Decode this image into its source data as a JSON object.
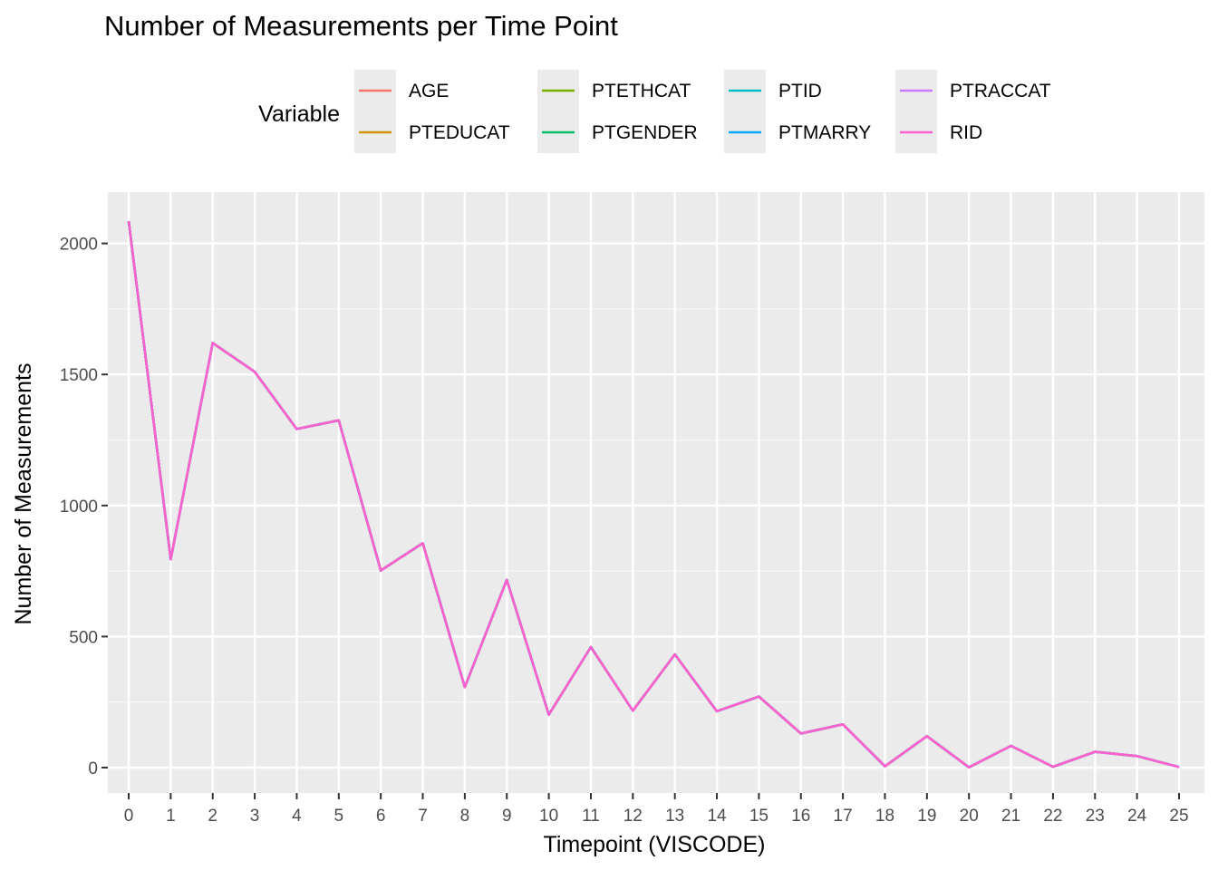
{
  "chart_data": {
    "type": "line",
    "title": "Number of Measurements per Time Point",
    "xlabel": "Timepoint (VISCODE)",
    "ylabel": "Number of Measurements",
    "legend_title": "Variable",
    "legend_position": "top",
    "grid": true,
    "xlim": [
      0,
      25
    ],
    "ylim": [
      0,
      2080
    ],
    "x_ticks": [
      "0",
      "1",
      "2",
      "3",
      "4",
      "5",
      "6",
      "7",
      "8",
      "9",
      "10",
      "11",
      "12",
      "13",
      "14",
      "15",
      "16",
      "17",
      "18",
      "19",
      "20",
      "21",
      "22",
      "23",
      "24",
      "25"
    ],
    "y_ticks": [
      0,
      500,
      1000,
      1500,
      2000
    ],
    "x": [
      0,
      1,
      2,
      3,
      4,
      5,
      6,
      7,
      8,
      9,
      10,
      11,
      12,
      13,
      14,
      15,
      16,
      17,
      18,
      19,
      20,
      21,
      22,
      23,
      24,
      25
    ],
    "series": [
      {
        "name": "AGE",
        "color": "#F8766D",
        "values": [
          2085,
          795,
          1620,
          1510,
          1292,
          1325,
          752,
          856,
          307,
          716,
          202,
          460,
          217,
          432,
          215,
          271,
          130,
          165,
          5,
          120,
          1,
          83,
          3,
          60,
          44,
          2
        ]
      },
      {
        "name": "PTEDUCAT",
        "color": "#CD9600",
        "values": [
          2085,
          795,
          1620,
          1510,
          1292,
          1325,
          752,
          856,
          307,
          716,
          202,
          460,
          217,
          432,
          215,
          271,
          130,
          165,
          5,
          120,
          1,
          83,
          3,
          60,
          44,
          2
        ]
      },
      {
        "name": "PTETHCAT",
        "color": "#7CAE00",
        "values": [
          2085,
          795,
          1620,
          1510,
          1292,
          1325,
          752,
          856,
          307,
          716,
          202,
          460,
          217,
          432,
          215,
          271,
          130,
          165,
          5,
          120,
          1,
          83,
          3,
          60,
          44,
          2
        ]
      },
      {
        "name": "PTGENDER",
        "color": "#00BE67",
        "values": [
          2085,
          795,
          1620,
          1510,
          1292,
          1325,
          752,
          856,
          307,
          716,
          202,
          460,
          217,
          432,
          215,
          271,
          130,
          165,
          5,
          120,
          1,
          83,
          3,
          60,
          44,
          2
        ]
      },
      {
        "name": "PTID",
        "color": "#00BFC4",
        "values": [
          2085,
          795,
          1620,
          1510,
          1292,
          1325,
          752,
          856,
          307,
          716,
          202,
          460,
          217,
          432,
          215,
          271,
          130,
          165,
          5,
          120,
          1,
          83,
          3,
          60,
          44,
          2
        ]
      },
      {
        "name": "PTMARRY",
        "color": "#00A9FF",
        "values": [
          2085,
          795,
          1620,
          1510,
          1292,
          1325,
          752,
          856,
          307,
          716,
          202,
          460,
          217,
          432,
          215,
          271,
          130,
          165,
          5,
          120,
          1,
          83,
          3,
          60,
          44,
          2
        ]
      },
      {
        "name": "PTRACCAT",
        "color": "#C77CFF",
        "values": [
          2085,
          795,
          1620,
          1510,
          1292,
          1325,
          752,
          856,
          307,
          716,
          202,
          460,
          217,
          432,
          215,
          271,
          130,
          165,
          5,
          120,
          1,
          83,
          3,
          60,
          44,
          2
        ]
      },
      {
        "name": "RID",
        "color": "#FF61CC",
        "values": [
          2085,
          795,
          1620,
          1510,
          1292,
          1325,
          752,
          856,
          307,
          716,
          202,
          460,
          217,
          432,
          215,
          271,
          130,
          165,
          5,
          120,
          1,
          83,
          3,
          60,
          44,
          2
        ]
      }
    ]
  }
}
